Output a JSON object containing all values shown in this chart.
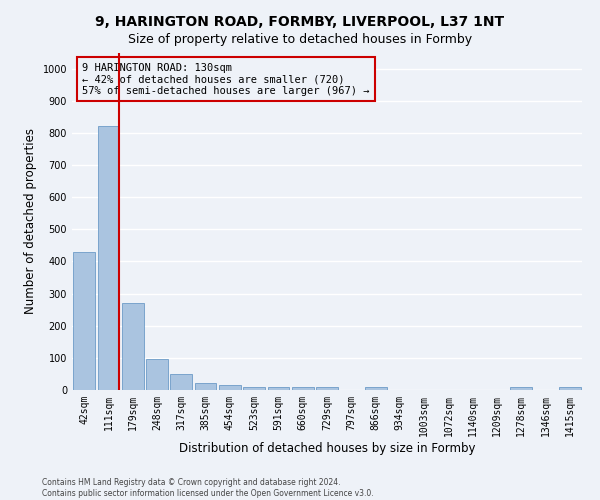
{
  "title_line1": "9, HARINGTON ROAD, FORMBY, LIVERPOOL, L37 1NT",
  "title_line2": "Size of property relative to detached houses in Formby",
  "xlabel": "Distribution of detached houses by size in Formby",
  "ylabel": "Number of detached properties",
  "categories": [
    "42sqm",
    "111sqm",
    "179sqm",
    "248sqm",
    "317sqm",
    "385sqm",
    "454sqm",
    "523sqm",
    "591sqm",
    "660sqm",
    "729sqm",
    "797sqm",
    "866sqm",
    "934sqm",
    "1003sqm",
    "1072sqm",
    "1140sqm",
    "1209sqm",
    "1278sqm",
    "1346sqm",
    "1415sqm"
  ],
  "values": [
    430,
    820,
    270,
    95,
    50,
    22,
    15,
    10,
    8,
    10,
    10,
    0,
    8,
    0,
    0,
    0,
    0,
    0,
    8,
    0,
    8
  ],
  "bar_color": "#aac4e0",
  "bar_edge_color": "#5a8fc0",
  "highlight_line_color": "#cc0000",
  "highlight_bar_index": 1,
  "annotation_text": "9 HARINGTON ROAD: 130sqm\n← 42% of detached houses are smaller (720)\n57% of semi-detached houses are larger (967) →",
  "annotation_box_color": "#cc0000",
  "ylim": [
    0,
    1050
  ],
  "yticks": [
    0,
    100,
    200,
    300,
    400,
    500,
    600,
    700,
    800,
    900,
    1000
  ],
  "footer_line1": "Contains HM Land Registry data © Crown copyright and database right 2024.",
  "footer_line2": "Contains public sector information licensed under the Open Government Licence v3.0.",
  "background_color": "#eef2f8",
  "grid_color": "#ffffff",
  "title_fontsize": 10,
  "subtitle_fontsize": 9,
  "tick_fontsize": 7,
  "label_fontsize": 8.5
}
